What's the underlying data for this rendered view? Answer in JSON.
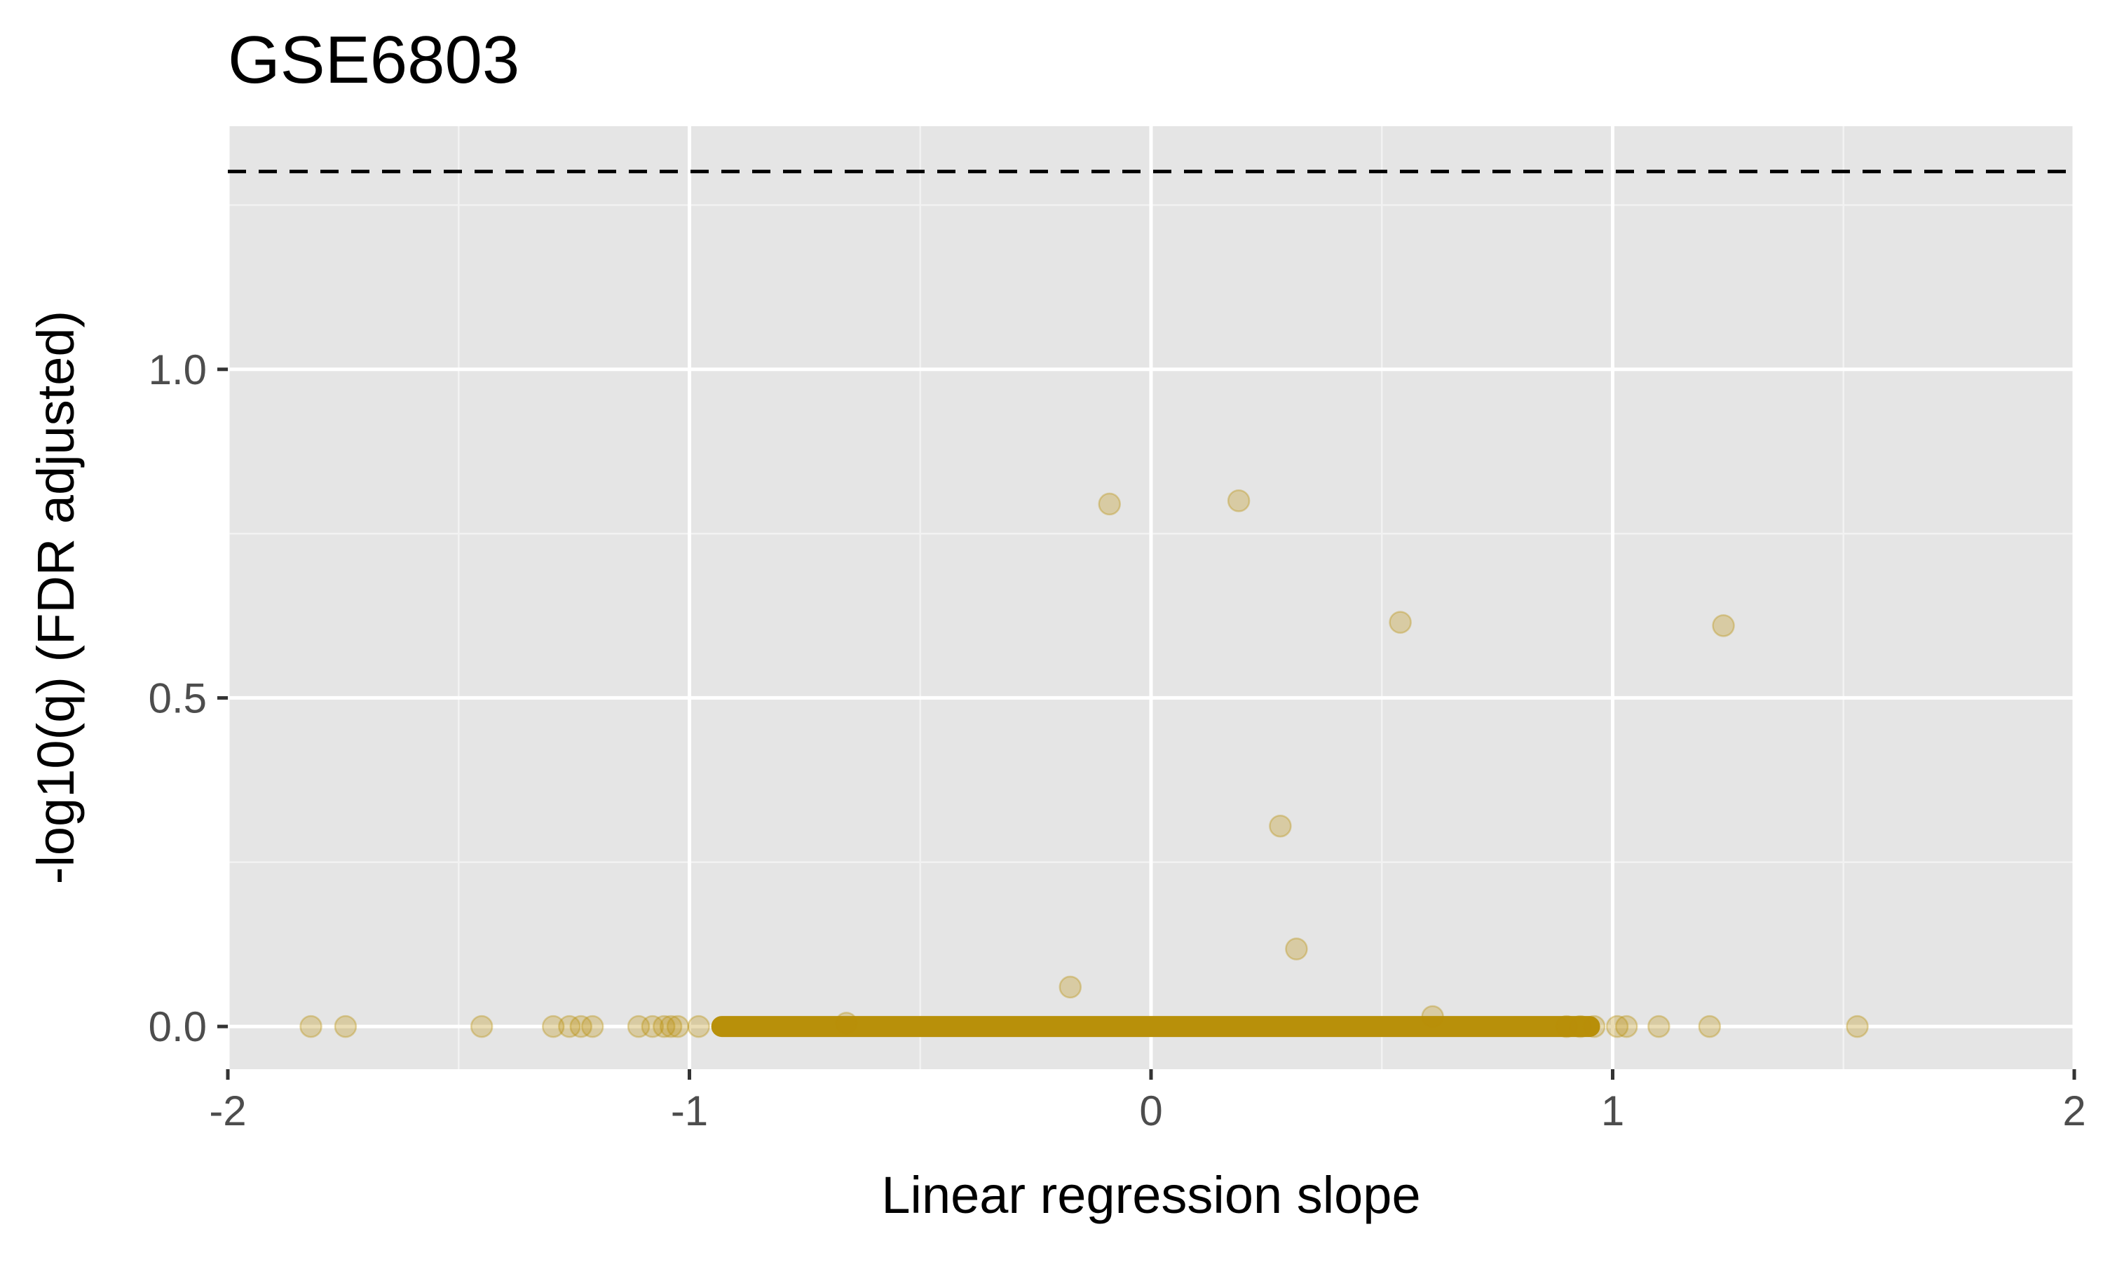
{
  "chart_data": {
    "type": "scatter",
    "title": "GSE6803",
    "xlabel": "Linear regression slope",
    "ylabel": "-log10(q) (FDR adjusted)",
    "xlim": [
      -2,
      2
    ],
    "ylim": [
      -0.065,
      1.37
    ],
    "x_ticks": [
      -2,
      -1,
      0,
      1,
      2
    ],
    "x_tick_labels": [
      "-2",
      "-1",
      "0",
      "1",
      "2"
    ],
    "y_ticks": [
      0.0,
      0.5,
      1.0
    ],
    "y_tick_labels": [
      "0.0",
      "0.5",
      "1.0"
    ],
    "grid": true,
    "legend": "none",
    "threshold_line": {
      "y": 1.301,
      "style": "dashed",
      "color": "#000000"
    },
    "point_color": "#b8900a",
    "point_opacity": 0.3,
    "dense_band": {
      "x_range": [
        -0.93,
        0.95
      ],
      "y": 0.0
    },
    "points": [
      {
        "x": -0.09,
        "y": 0.795
      },
      {
        "x": 0.19,
        "y": 0.8
      },
      {
        "x": 0.54,
        "y": 0.615
      },
      {
        "x": 1.24,
        "y": 0.61
      },
      {
        "x": 0.28,
        "y": 0.305
      },
      {
        "x": 0.315,
        "y": 0.118
      },
      {
        "x": -0.175,
        "y": 0.06
      },
      {
        "x": 0.61,
        "y": 0.015
      },
      {
        "x": -0.66,
        "y": 0.005
      },
      {
        "x": -1.82,
        "y": 0.0
      },
      {
        "x": -1.745,
        "y": 0.0
      },
      {
        "x": -1.45,
        "y": 0.0
      },
      {
        "x": -1.295,
        "y": 0.0
      },
      {
        "x": -1.26,
        "y": 0.0
      },
      {
        "x": -1.235,
        "y": 0.0
      },
      {
        "x": -1.21,
        "y": 0.0
      },
      {
        "x": -1.11,
        "y": 0.0
      },
      {
        "x": -1.08,
        "y": 0.0
      },
      {
        "x": -1.055,
        "y": 0.0
      },
      {
        "x": -1.04,
        "y": 0.0
      },
      {
        "x": -1.025,
        "y": 0.0
      },
      {
        "x": -0.98,
        "y": 0.0
      },
      {
        "x": 0.9,
        "y": 0.0
      },
      {
        "x": 0.93,
        "y": 0.0
      },
      {
        "x": 0.96,
        "y": 0.0
      },
      {
        "x": 1.01,
        "y": 0.0
      },
      {
        "x": 1.03,
        "y": 0.0
      },
      {
        "x": 1.1,
        "y": 0.0
      },
      {
        "x": 1.21,
        "y": 0.0
      },
      {
        "x": 1.53,
        "y": 0.0
      }
    ]
  }
}
